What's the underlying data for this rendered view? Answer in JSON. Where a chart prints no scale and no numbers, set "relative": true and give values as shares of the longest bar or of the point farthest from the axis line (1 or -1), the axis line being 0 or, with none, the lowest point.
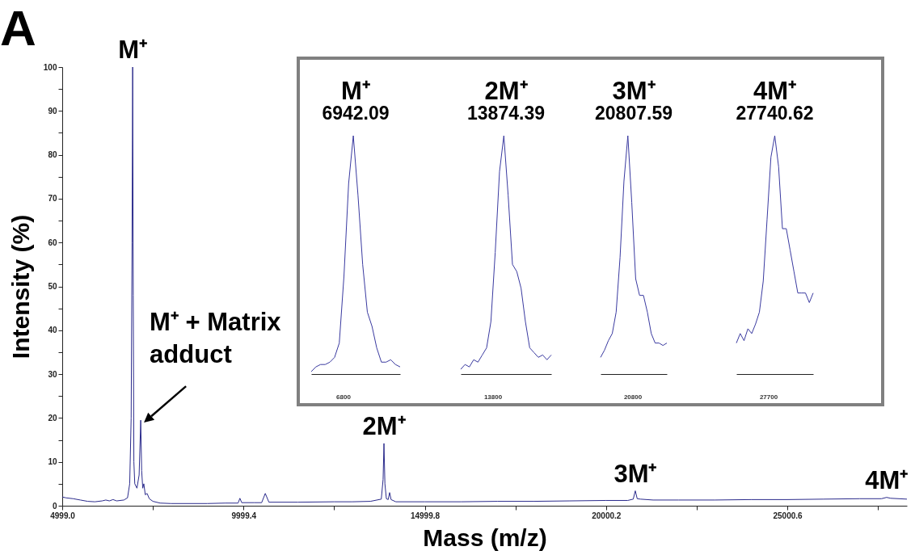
{
  "chart_data": [
    {
      "type": "line",
      "title": "A",
      "xlabel": "Mass (m/z)",
      "ylabel": "Intensity (%)",
      "x": [
        4999,
        5100,
        5300,
        5500,
        5700,
        5900,
        6100,
        6200,
        6300,
        6400,
        6500,
        6700,
        6800,
        6860,
        6900,
        6925,
        6942,
        6958,
        6975,
        7000,
        7060,
        7120,
        7164,
        7190,
        7220,
        7250,
        7290,
        7340,
        7400,
        7500,
        7700,
        8000,
        8500,
        9000,
        9500,
        9850,
        9900,
        9950,
        10300,
        10500,
        10600,
        10700,
        11500,
        12500,
        13000,
        13500,
        13800,
        13850,
        13874,
        13900,
        13940,
        13990,
        14030,
        14070,
        14200,
        15000,
        16000,
        17000,
        18000,
        19000,
        20000,
        20600,
        20750,
        20807,
        20860,
        20950,
        21300,
        22000,
        23000,
        24000,
        25000,
        26000,
        27000,
        27600,
        27740,
        27850,
        28300
      ],
      "series": [
        {
          "color": "#2b2b8c",
          "values": [
            2.0,
            1.8,
            1.6,
            1.3,
            1.0,
            0.9,
            1.1,
            1.3,
            1.1,
            1.4,
            1.1,
            1.3,
            1.8,
            5,
            20,
            60,
            100,
            48,
            10,
            5,
            4,
            7,
            19.5,
            8,
            4,
            5,
            2.5,
            2.8,
            1.6,
            1.0,
            0.6,
            0.5,
            0.5,
            0.5,
            0.6,
            0.6,
            1.7,
            0.7,
            0.7,
            0.7,
            2.8,
            0.8,
            0.8,
            0.9,
            0.9,
            1.0,
            1.5,
            6,
            14.2,
            5,
            1.6,
            1.4,
            3,
            1.4,
            0.9,
            0.9,
            0.9,
            1.0,
            1.0,
            1.1,
            1.2,
            1.2,
            1.5,
            3.4,
            1.6,
            1.5,
            1.3,
            1.3,
            1.3,
            1.4,
            1.4,
            1.5,
            1.6,
            1.6,
            1.9,
            1.7,
            1.5
          ]
        }
      ],
      "xlim": [
        4999,
        28300
      ],
      "ylim": [
        0,
        100
      ],
      "xticks": [
        {
          "value": 4999,
          "label": "4999.0"
        },
        {
          "value": 7499.2,
          "label": null
        },
        9999.4,
        {
          "value": 12499.6,
          "label": null
        },
        14999.8,
        {
          "value": 17500,
          "label": null
        },
        20000.2,
        {
          "value": 22500.4,
          "label": null
        },
        25000.6,
        {
          "value": 27500.8,
          "label": null
        }
      ],
      "yticks": [
        0,
        {
          "value": 5,
          "label": null
        },
        10,
        {
          "value": 15,
          "label": null
        },
        20,
        {
          "value": 25,
          "label": null
        },
        30,
        {
          "value": 35,
          "label": null
        },
        40,
        {
          "value": 45,
          "label": null
        },
        50,
        {
          "value": 55,
          "label": null
        },
        60,
        {
          "value": 65,
          "label": null
        },
        70,
        {
          "value": 75,
          "label": null
        },
        80,
        {
          "value": 85,
          "label": null
        },
        90,
        {
          "value": 95,
          "label": null
        },
        100
      ],
      "annotations": [
        {
          "text": "M⁺",
          "x": 6942,
          "y": 100
        },
        {
          "text": "M⁺ + Matrix\nadduct",
          "x": 7164,
          "y": 19.5
        },
        {
          "text": "2M⁺",
          "x": 13874,
          "y": 14.2
        },
        {
          "text": "3M⁺",
          "x": 20807,
          "y": 3.4
        },
        {
          "text": "4M⁺",
          "x": 27740,
          "y": 1.9
        }
      ]
    },
    {
      "type": "line",
      "relative": true,
      "title": "M⁺",
      "subtitle": "6942.09",
      "categories": [
        null,
        null,
        null,
        null,
        null,
        null,
        null,
        null,
        null,
        null,
        null,
        null,
        null,
        null,
        null,
        null,
        null,
        null,
        null,
        null
      ],
      "series": [
        {
          "color": "#3a3aa0",
          "values": [
            0.01,
            0.03,
            0.04,
            0.04,
            0.05,
            0.07,
            0.13,
            0.41,
            0.8,
            1.0,
            0.75,
            0.46,
            0.26,
            0.2,
            0.11,
            0.05,
            0.05,
            0.06,
            0.04,
            0.03
          ]
        }
      ],
      "annotations": [
        "6800"
      ]
    },
    {
      "type": "line",
      "relative": true,
      "title": "2M⁺",
      "subtitle": "13874.39",
      "categories": [
        null,
        null,
        null,
        null,
        null,
        null,
        null,
        null,
        null,
        null,
        null,
        null,
        null,
        null,
        null,
        null,
        null,
        null,
        null,
        null,
        null,
        null
      ],
      "series": [
        {
          "color": "#3a3aa0",
          "values": [
            0.02,
            0.04,
            0.03,
            0.06,
            0.05,
            0.08,
            0.11,
            0.22,
            0.51,
            0.85,
            1.0,
            0.75,
            0.46,
            0.43,
            0.36,
            0.22,
            0.11,
            0.09,
            0.07,
            0.08,
            0.06,
            0.08
          ]
        }
      ],
      "annotations": [
        "13800"
      ]
    },
    {
      "type": "line",
      "relative": true,
      "title": "3M⁺",
      "subtitle": "20807.59",
      "categories": [
        null,
        null,
        null,
        null,
        null,
        null,
        null,
        null,
        null,
        null,
        null,
        null,
        null,
        null,
        null,
        null,
        null,
        null
      ],
      "series": [
        {
          "color": "#3a3aa0",
          "values": [
            0.07,
            0.1,
            0.14,
            0.17,
            0.26,
            0.49,
            0.81,
            1.0,
            0.72,
            0.4,
            0.33,
            0.33,
            0.26,
            0.17,
            0.13,
            0.13,
            0.12,
            0.13
          ]
        }
      ],
      "annotations": [
        "20800"
      ]
    },
    {
      "type": "line",
      "relative": true,
      "title": "4M⁺",
      "subtitle": "27740.62",
      "categories": [
        null,
        null,
        null,
        null,
        null,
        null,
        null,
        null,
        null,
        null,
        null,
        null,
        null,
        null,
        null,
        null,
        null,
        null,
        null,
        null,
        null
      ],
      "series": [
        {
          "color": "#3a3aa0",
          "values": [
            0.13,
            0.17,
            0.14,
            0.19,
            0.17,
            0.21,
            0.26,
            0.39,
            0.65,
            0.91,
            1.0,
            0.87,
            0.61,
            0.61,
            0.52,
            0.43,
            0.34,
            0.34,
            0.34,
            0.3,
            0.34
          ]
        }
      ],
      "annotations": [
        "27700"
      ]
    }
  ]
}
